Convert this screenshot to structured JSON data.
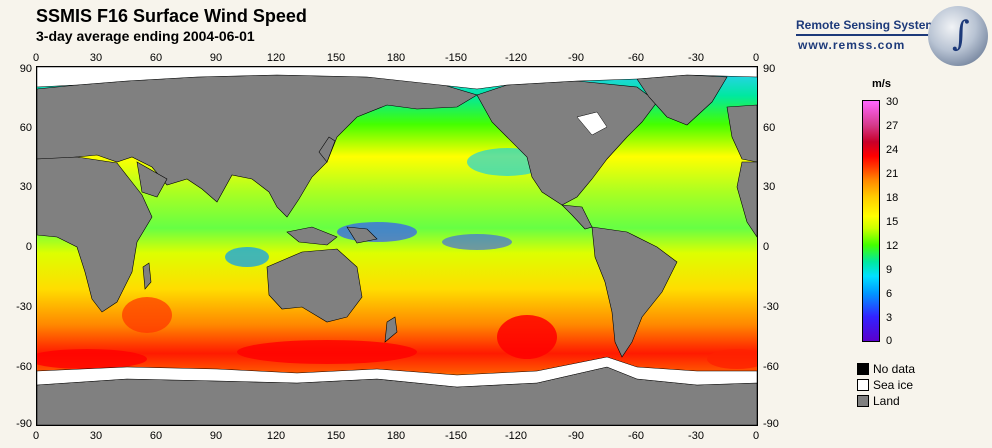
{
  "header": {
    "title": "SSMIS F16 Surface Wind Speed",
    "subtitle": "3-day average ending 2004-06-01"
  },
  "brand": {
    "name": "Remote Sensing Systems",
    "url": "www.remss.com"
  },
  "map": {
    "lon_ticks": [
      "0",
      "30",
      "60",
      "90",
      "120",
      "150",
      "180",
      "-150",
      "-120",
      "-90",
      "-60",
      "-30",
      "0"
    ],
    "lat_ticks": [
      "90",
      "60",
      "30",
      "0",
      "-30",
      "-60",
      "-90"
    ],
    "land_color": "#808080",
    "sea_ice_color": "#ffffff"
  },
  "colorbar": {
    "unit": "m/s",
    "labels": [
      "30",
      "27",
      "24",
      "21",
      "18",
      "15",
      "12",
      "9",
      "6",
      "3",
      "0"
    ]
  },
  "legend": {
    "items": [
      {
        "label": "No data",
        "color": "#000000"
      },
      {
        "label": "Sea ice",
        "color": "#ffffff"
      },
      {
        "label": "Land",
        "color": "#808080"
      }
    ]
  }
}
